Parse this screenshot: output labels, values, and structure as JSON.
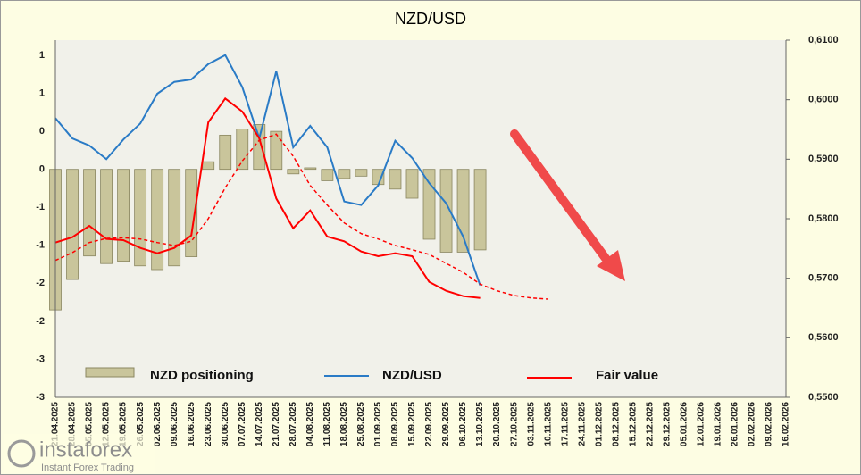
{
  "chart_data": {
    "type": "combo",
    "title": "NZD/USD",
    "categories": [
      "21.04.2025",
      "28.04.2025",
      "05.05.2025",
      "12.05.2025",
      "19.05.2025",
      "26.05.2025",
      "02.06.2025",
      "09.06.2025",
      "16.06.2025",
      "23.06.2025",
      "30.06.2025",
      "07.07.2025",
      "14.07.2025",
      "21.07.2025",
      "28.07.2025",
      "04.08.2025",
      "11.08.2025",
      "18.08.2025",
      "25.08.2025",
      "01.09.2025",
      "08.09.2025",
      "15.09.2025",
      "22.09.2025",
      "29.09.2025",
      "06.10.2025",
      "13.10.2025",
      "20.10.2025",
      "27.10.2025",
      "03.11.2025",
      "10.11.2025",
      "17.11.2025",
      "24.11.2025",
      "01.12.2025",
      "08.12.2025",
      "15.12.2025",
      "22.12.2025",
      "29.12.2025",
      "05.01.2026",
      "12.01.2026",
      "19.01.2026",
      "26.01.2026",
      "02.02.2026",
      "09.02.2026",
      "16.02.2026"
    ],
    "series": [
      {
        "name": "NZD positioning",
        "type": "bar",
        "color": "#c9c59b",
        "values": [
          -1.85,
          -1.45,
          -1.14,
          -1.24,
          -1.21,
          -1.27,
          -1.32,
          -1.27,
          -1.15,
          0.1,
          0.45,
          0.53,
          0.59,
          0.5,
          -0.06,
          0.02,
          -0.15,
          -0.12,
          -0.09,
          -0.2,
          -0.26,
          -0.38,
          -0.92,
          -1.09,
          -1.09,
          -1.06,
          null,
          null,
          null,
          null,
          null,
          null,
          null,
          null,
          null,
          null,
          null,
          null,
          null,
          null,
          null,
          null,
          null,
          null
        ]
      },
      {
        "name": "NZD/USD",
        "type": "line",
        "axis": "y2",
        "color": "#2a7bc6",
        "values": [
          0.5969,
          0.5935,
          0.5923,
          0.59,
          0.5933,
          0.596,
          0.601,
          0.603,
          0.6034,
          0.606,
          0.6075,
          0.6021,
          0.5935,
          0.6048,
          0.592,
          0.5956,
          0.592,
          0.5829,
          0.5823,
          0.5856,
          0.5931,
          0.5902,
          0.586,
          0.5826,
          0.577,
          0.5688,
          null,
          null,
          null,
          null,
          null,
          null,
          null,
          null,
          null,
          null,
          null,
          null,
          null,
          null,
          null,
          null,
          null,
          null
        ]
      },
      {
        "name": "Fair value",
        "type": "line",
        "axis": "y2",
        "color": "#ff0000",
        "values": [
          0.576,
          0.5769,
          0.5788,
          0.5766,
          0.5764,
          0.5751,
          0.5742,
          0.5751,
          0.5772,
          0.5962,
          0.6002,
          0.598,
          0.5935,
          0.5834,
          0.5784,
          0.5814,
          0.577,
          0.5762,
          0.5745,
          0.5737,
          0.5742,
          0.5737,
          0.5694,
          0.5679,
          0.567,
          0.5667,
          null,
          null,
          null,
          null,
          null,
          null,
          null,
          null,
          null,
          null,
          null,
          null,
          null,
          null,
          null,
          null,
          null,
          null
        ]
      },
      {
        "type": "line",
        "axis": "y2",
        "color": "#ff0000",
        "dash": true,
        "values": [
          0.573,
          0.5743,
          0.576,
          0.5767,
          0.5768,
          0.5766,
          0.576,
          0.5755,
          0.5762,
          0.58,
          0.5852,
          0.5897,
          0.5932,
          0.5942,
          0.5905,
          0.5856,
          0.5823,
          0.5793,
          0.5775,
          0.5766,
          0.5755,
          0.5748,
          0.574,
          0.5725,
          0.571,
          0.569,
          0.5679,
          0.5671,
          0.5667,
          0.5665,
          null,
          null,
          null,
          null,
          null,
          null,
          null,
          null,
          null,
          null,
          null,
          null,
          null,
          null
        ]
      }
    ],
    "ylim": [
      -3,
      1.7
    ],
    "yticks": [
      -3,
      {
        "value": -2.5,
        "label": "-3"
      },
      -2,
      {
        "value": -1.5,
        "label": "-2"
      },
      -1,
      {
        "value": -0.5,
        "label": "-1"
      },
      0,
      {
        "value": 0.5,
        "label": "0"
      },
      1,
      {
        "value": 1.5,
        "label": "1"
      }
    ],
    "y2lim": [
      0.55,
      0.61
    ],
    "y2ticks": [
      {
        "value": 0.55,
        "label": "0,5500"
      },
      {
        "value": 0.56,
        "label": "0,5600"
      },
      {
        "value": 0.57,
        "label": "0,5700"
      },
      {
        "value": 0.58,
        "label": "0,5800"
      },
      {
        "value": 0.59,
        "label": "0,5900"
      },
      {
        "value": 0.6,
        "label": "0,6000"
      },
      {
        "value": 0.61,
        "label": "0,6100"
      }
    ],
    "grid": true
  },
  "logo": {
    "name": "instaforex",
    "tagline": "Instant Forex Trading"
  }
}
